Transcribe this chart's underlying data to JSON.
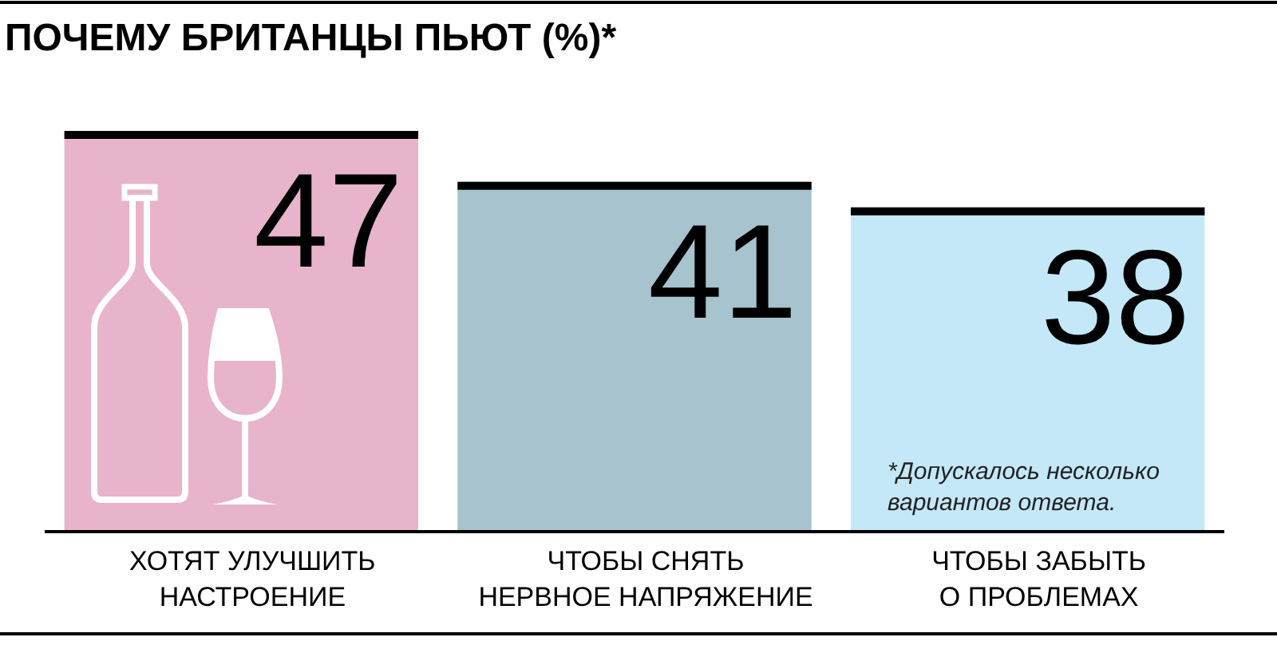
{
  "chart_data": {
    "type": "bar",
    "title": "ПОЧЕМУ БРИТАНЦЫ ПЬЮТ (%)*",
    "categories": [
      "ХОТЯТ УЛУЧШИТЬ\nНАСТРОЕНИЕ",
      "ЧТОБЫ СНЯТЬ\nНЕРВНОЕ НАПРЯЖЕНИЕ",
      "ЧТОБЫ ЗАБЫТЬ\nО ПРОБЛЕМАХ"
    ],
    "values": [
      47,
      41,
      38
    ],
    "colors": [
      "#e8b4cb",
      "#a6c3ce",
      "#c4e8f8"
    ],
    "ylim": [
      0,
      47
    ],
    "data_labels": true,
    "tick_labels": "x",
    "annotations": [
      "*Допускалось несколько\nвариантов ответа."
    ]
  }
}
